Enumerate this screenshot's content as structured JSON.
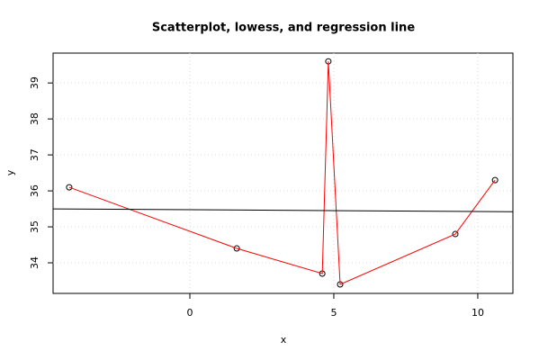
{
  "chart_data": {
    "type": "scatter",
    "title": "Scatterplot, lowess, and regression line",
    "x_label": "x",
    "y_label": "y",
    "xlim": [
      -4.75,
      11.22
    ],
    "ylim": [
      33.15,
      39.83
    ],
    "xticks": [
      0,
      5,
      10
    ],
    "yticks": [
      34,
      35,
      36,
      37,
      38,
      39
    ],
    "grid": true,
    "series": [
      {
        "mark": "point",
        "color": "#000000",
        "x": [
          -4.19,
          1.63,
          4.6,
          4.81,
          5.22,
          9.22,
          10.6
        ],
        "values": [
          36.1,
          34.4,
          33.7,
          39.6,
          33.4,
          34.8,
          36.3
        ]
      },
      {
        "mark": "line",
        "color": "#ff0000",
        "x": [
          -4.19,
          1.63,
          4.6,
          4.81,
          5.22,
          9.22,
          10.6
        ],
        "values": [
          36.1,
          34.4,
          33.7,
          39.6,
          33.4,
          34.8,
          36.3
        ]
      },
      {
        "mark": "line",
        "color": "#000000",
        "x": [
          -4.75,
          11.22
        ],
        "values": [
          35.5,
          35.42
        ]
      }
    ]
  }
}
